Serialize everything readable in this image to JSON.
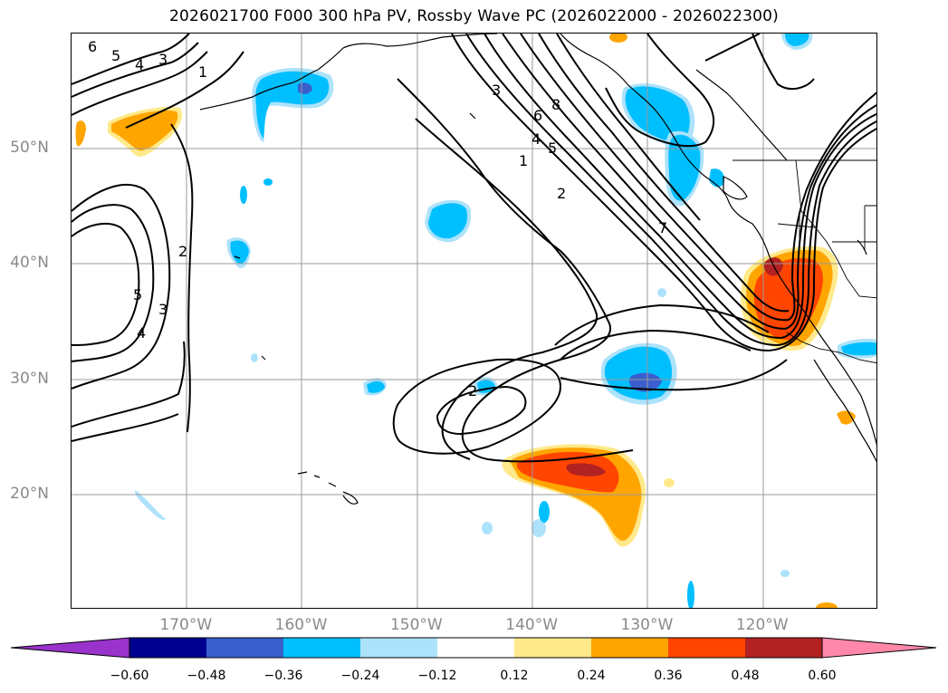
{
  "title": "2026021700 F000 300 hPa PV, Rossby Wave PC (2026022000 - 2026022300)",
  "lat_labels": [
    {
      "text": "50°N",
      "lat": 50
    },
    {
      "text": "40°N",
      "lat": 40
    },
    {
      "text": "30°N",
      "lat": 30
    },
    {
      "text": "20°N",
      "lat": 20
    }
  ],
  "lon_labels": [
    {
      "text": "170°W",
      "lon": -170
    },
    {
      "text": "160°W",
      "lon": -160
    },
    {
      "text": "150°W",
      "lon": -150
    },
    {
      "text": "140°W",
      "lon": -140
    },
    {
      "text": "130°W",
      "lon": -130
    },
    {
      "text": "120°W",
      "lon": -120
    }
  ],
  "map_extent": {
    "lon_min": -180,
    "lon_max": -110,
    "lat_min": 10,
    "lat_max": 60
  },
  "colorbar": {
    "levels": [
      -0.6,
      -0.48,
      -0.36,
      -0.24,
      -0.12,
      0.12,
      0.24,
      0.36,
      0.48,
      0.6
    ],
    "tick_labels": [
      "−0.60",
      "−0.48",
      "−0.36",
      "−0.24",
      "−0.12",
      "0.12",
      "0.24",
      "0.36",
      "0.48",
      "0.60"
    ],
    "colors": [
      "#9933cc",
      "#000090",
      "#3a5fcd",
      "#00bfff",
      "#ade2fb",
      "#ffffff",
      "#ffe98a",
      "#ffa500",
      "#ff4500",
      "#b22222",
      "#ff88aa"
    ]
  },
  "contour_labels": [
    "6",
    "5",
    "4",
    "3",
    "1",
    "5",
    "4",
    "3",
    "2",
    "3",
    "6",
    "8",
    "4",
    "5",
    "1",
    "2",
    "7",
    "2"
  ]
}
